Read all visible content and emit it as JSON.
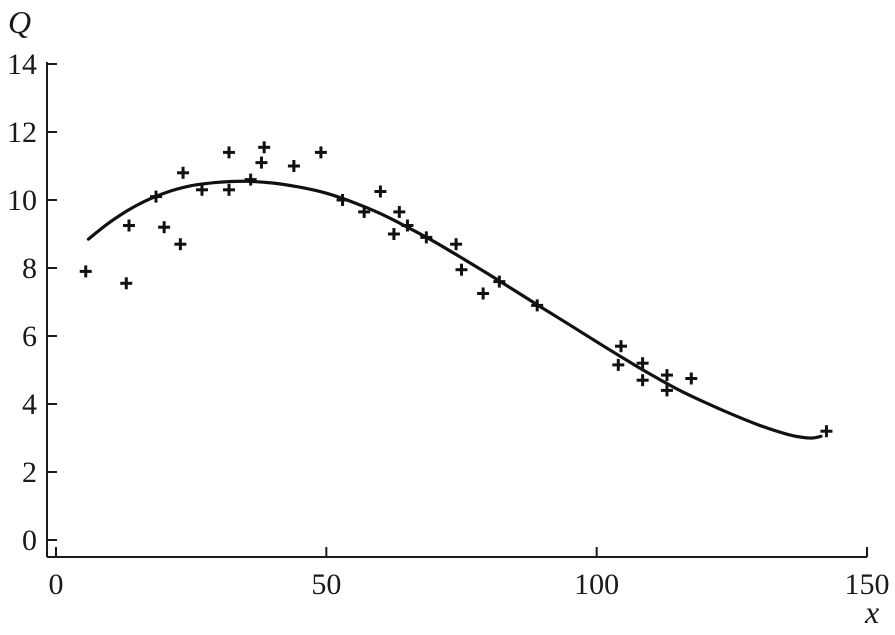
{
  "chart_data": {
    "type": "scatter",
    "xlabel": "x",
    "ylabel": "Q",
    "xlim": [
      0,
      150
    ],
    "ylim": [
      0,
      14
    ],
    "x_ticks": [
      "0",
      "50",
      "100",
      "150"
    ],
    "y_ticks": [
      "0",
      "2",
      "4",
      "6",
      "8",
      "10",
      "12",
      "14"
    ],
    "grid": false,
    "legend": "none",
    "series": [
      {
        "marker": "plus",
        "points": [
          [
            5.5,
            7.9
          ],
          [
            13,
            7.55
          ],
          [
            13.5,
            9.25
          ],
          [
            18.5,
            10.1
          ],
          [
            20,
            9.2
          ],
          [
            23,
            8.7
          ],
          [
            23.5,
            10.8
          ],
          [
            27,
            10.3
          ],
          [
            32,
            11.4
          ],
          [
            32,
            10.3
          ],
          [
            36,
            10.6
          ],
          [
            38,
            11.1
          ],
          [
            38.5,
            11.55
          ],
          [
            44,
            11.0
          ],
          [
            49,
            11.4
          ],
          [
            53,
            10.0
          ],
          [
            57,
            9.65
          ],
          [
            60,
            10.25
          ],
          [
            62.5,
            9.0
          ],
          [
            63.5,
            9.65
          ],
          [
            65,
            9.25
          ],
          [
            68.5,
            8.9
          ],
          [
            74,
            8.7
          ],
          [
            75,
            7.95
          ],
          [
            79,
            7.25
          ],
          [
            82,
            7.6
          ],
          [
            89,
            6.9
          ],
          [
            104,
            5.15
          ],
          [
            104.5,
            5.7
          ],
          [
            108.5,
            5.2
          ],
          [
            108.5,
            4.7
          ],
          [
            113,
            4.85
          ],
          [
            113,
            4.4
          ],
          [
            117.5,
            4.75
          ],
          [
            142.5,
            3.2
          ]
        ]
      },
      {
        "style": "line",
        "points": [
          [
            6,
            8.85
          ],
          [
            10,
            9.35
          ],
          [
            15,
            9.85
          ],
          [
            20,
            10.2
          ],
          [
            25,
            10.42
          ],
          [
            30,
            10.52
          ],
          [
            35,
            10.55
          ],
          [
            40,
            10.5
          ],
          [
            45,
            10.38
          ],
          [
            50,
            10.2
          ],
          [
            55,
            9.93
          ],
          [
            60,
            9.6
          ],
          [
            65,
            9.2
          ],
          [
            70,
            8.77
          ],
          [
            75,
            8.3
          ],
          [
            80,
            7.82
          ],
          [
            85,
            7.32
          ],
          [
            90,
            6.82
          ],
          [
            95,
            6.33
          ],
          [
            100,
            5.83
          ],
          [
            105,
            5.34
          ],
          [
            110,
            4.87
          ],
          [
            115,
            4.43
          ],
          [
            120,
            4.05
          ],
          [
            125,
            3.7
          ],
          [
            130,
            3.38
          ],
          [
            135,
            3.12
          ],
          [
            138,
            3.02
          ],
          [
            140,
            3.0
          ],
          [
            141.5,
            3.05
          ]
        ]
      }
    ]
  }
}
